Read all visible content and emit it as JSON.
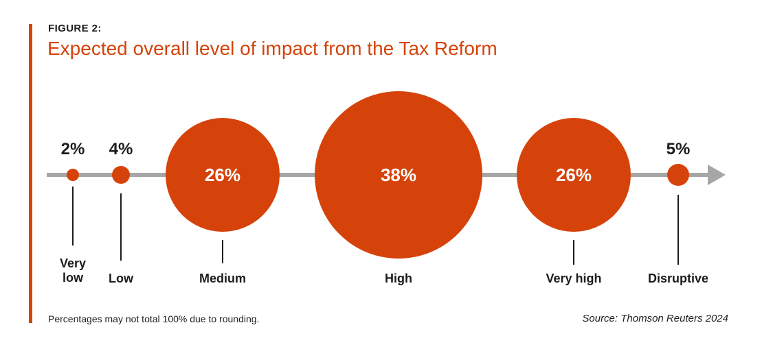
{
  "figure": {
    "label": "FIGURE 2:",
    "title": "Expected overall level of impact from the Tax Reform",
    "footnote": "Percentages may not total 100% due to rounding.",
    "source": "Source: Thomson Reuters 2024"
  },
  "colors": {
    "accent": "#d6430a",
    "axis_gray": "#a6a6a6",
    "text": "#1c1c1c",
    "bubble_text": "#ffffff"
  },
  "chart_data": {
    "type": "bubble",
    "title": "Expected overall level of impact from the Tax Reform",
    "categories": [
      "Very low",
      "Low",
      "Medium",
      "High",
      "Very high",
      "Disruptive"
    ],
    "values": [
      2,
      4,
      26,
      38,
      26,
      5
    ],
    "value_labels": [
      "2%",
      "4%",
      "26%",
      "38%",
      "26%",
      "5%"
    ],
    "axis_style": "horizontal ordinal scale ending in a right-pointing gray arrow",
    "bubble_scale": "circle radius proportional to percentage value",
    "legend": "none",
    "notes": "Percentages may not total 100% due to rounding."
  }
}
